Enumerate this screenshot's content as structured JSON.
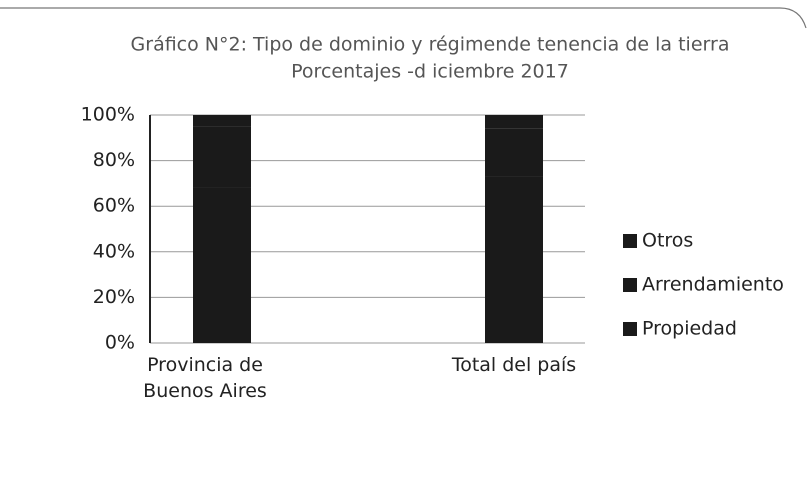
{
  "chart_data": {
    "type": "stacked-bar",
    "title": "Gráfico N°2: Tipo de dominio y régimende tenencia de la tierra",
    "subtitle": "Porcentajes -d iciembre 2017",
    "categories": [
      "Provincia de Buenos Aires",
      "Total del  país"
    ],
    "series": [
      {
        "name": "Propiedad",
        "color": "#1a1a1a",
        "values": [
          68,
          73
        ]
      },
      {
        "name": "Arrendamiento",
        "color": "#1a1a1a",
        "values": [
          27,
          21
        ]
      },
      {
        "name": "Otros",
        "color": "#1a1a1a",
        "values": [
          5,
          6
        ]
      }
    ],
    "ylim": [
      0,
      100
    ],
    "yticks": [
      {
        "value": 0,
        "label": "0%"
      },
      {
        "value": 20,
        "label": "20%"
      },
      {
        "value": 40,
        "label": "40%"
      },
      {
        "value": 60,
        "label": "60%"
      },
      {
        "value": 80,
        "label": "80%"
      },
      {
        "value": 100,
        "label": "100%"
      }
    ],
    "grid": true,
    "legend": "right"
  }
}
